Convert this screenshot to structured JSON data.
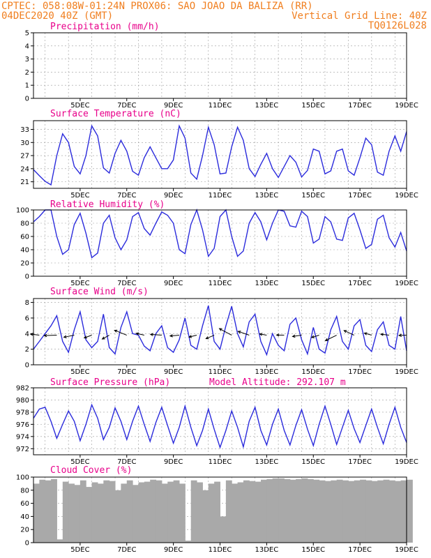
{
  "header": {
    "line1": "CPTEC:   058:08W-01:24N   PROX06: SAO JOAO DA BALIZA (RR)",
    "line2_left": "04DEC2020 40Z (GMT)",
    "line2_right": "Vertical Grid Line: 40Z",
    "line3_right": "TQ0126L028"
  },
  "colors": {
    "header": "#f07e1e",
    "title": "#e8008a",
    "series": "#2b2bdc",
    "bars": "#1f1fd8",
    "cloud": "#a9a9a9",
    "grid": "#9a9a9a"
  },
  "x_labels": [
    "5DEC",
    "7DEC",
    "9DEC",
    "11DEC",
    "13DEC",
    "15DEC",
    "17DEC",
    "19DEC"
  ],
  "model_altitude": "Model Altitude:  292.107 m",
  "chart_data": [
    {
      "type": "bar",
      "title": "Precipitation (mm/h)",
      "ylim": [
        0,
        5
      ],
      "yticks": [
        0,
        1,
        2,
        3,
        4,
        5
      ],
      "x": [
        3.0,
        3.1,
        3.2,
        3.3,
        3.4,
        3.5,
        3.6,
        3.7,
        3.8,
        3.9,
        4.0,
        4.1,
        4.2,
        4.3,
        4.4,
        4.5,
        4.6,
        4.7,
        4.8,
        4.9,
        5.0,
        5.1,
        5.2,
        5.3,
        5.4,
        5.5,
        5.6,
        5.7,
        5.8,
        5.9,
        6.0,
        6.1,
        6.2,
        6.3,
        6.4,
        6.5,
        6.6,
        6.7,
        6.8,
        6.9,
        7.0,
        7.1,
        7.2,
        7.3,
        7.4,
        7.5,
        7.6,
        7.7,
        7.8,
        7.9,
        8.0,
        8.1,
        8.2,
        8.3,
        8.4,
        8.5,
        8.6,
        8.7,
        8.8,
        8.9,
        9.0,
        9.1,
        9.2,
        9.3,
        9.4,
        9.5,
        9.6,
        9.7,
        9.8,
        9.9,
        10.0,
        10.1,
        10.2,
        10.3,
        10.4,
        10.5,
        10.6,
        10.7,
        10.8,
        10.9,
        11.0,
        11.1,
        11.2,
        11.3,
        11.4,
        11.5,
        11.6,
        11.7,
        11.8,
        11.9,
        12.0,
        12.1,
        12.2,
        12.3,
        12.4,
        12.5,
        12.6,
        12.7,
        12.8,
        12.9,
        13.0,
        13.1,
        13.2,
        13.3,
        13.4,
        13.5,
        13.6,
        13.7,
        13.8,
        13.9,
        14.0,
        14.1,
        14.2,
        14.3,
        14.4,
        14.5,
        14.6,
        14.7,
        14.8,
        14.9,
        15.0,
        15.1,
        15.2,
        15.3,
        15.4,
        15.5,
        15.6,
        15.7,
        15.8,
        15.9,
        16.0,
        16.1,
        16.2,
        16.3,
        16.4,
        16.5,
        16.6,
        16.7,
        16.8,
        16.9,
        17.0,
        17.1,
        17.2,
        17.3,
        17.4,
        17.5,
        17.6,
        17.7,
        17.8,
        17.9,
        18.0,
        18.1,
        18.2,
        18.3,
        18.4,
        18.5,
        18.6,
        18.7,
        18.8,
        18.9
      ],
      "values": [
        0,
        0,
        0,
        0,
        0,
        0,
        0,
        0,
        0,
        0,
        0,
        0,
        0,
        0,
        0,
        0,
        0,
        0,
        0,
        0,
        0,
        0,
        0,
        0,
        0,
        0,
        0,
        0,
        0,
        0,
        0,
        0,
        0,
        0,
        0,
        0,
        0,
        0,
        0,
        0,
        0,
        0,
        0,
        0,
        0,
        0,
        0,
        0,
        0,
        0,
        0,
        0,
        0,
        0,
        0,
        0,
        0,
        0,
        0,
        0,
        0,
        0,
        0,
        0,
        0,
        0,
        0,
        0,
        0,
        0,
        0,
        0,
        0,
        0,
        0,
        0,
        0,
        0,
        0,
        0,
        0,
        0,
        0,
        0,
        0,
        0,
        0,
        0,
        0,
        0,
        0,
        0,
        0,
        0,
        0,
        0,
        0,
        0,
        0,
        0,
        0,
        0,
        0,
        0,
        0,
        0,
        0,
        0,
        0,
        0,
        0,
        0,
        0,
        0,
        0,
        0,
        0,
        0,
        0,
        0,
        0,
        0,
        0,
        0,
        0,
        0,
        0,
        0,
        0,
        0,
        0,
        0,
        0,
        0,
        0,
        0,
        0,
        0,
        0,
        0,
        0,
        0,
        0,
        0,
        0,
        0,
        0,
        0,
        0,
        0,
        0,
        0,
        0,
        0,
        0,
        0,
        0,
        0,
        0,
        0
      ]
    },
    {
      "type": "line",
      "title": "Surface Temperature (nC)",
      "ylim": [
        19.5,
        35
      ],
      "yticks": [
        21,
        24,
        27,
        30,
        33
      ],
      "x": [
        3.0,
        3.25,
        3.5,
        3.75,
        4.0,
        4.25,
        4.5,
        4.75,
        5.0,
        5.25,
        5.5,
        5.75,
        6.0,
        6.25,
        6.5,
        6.75,
        7.0,
        7.25,
        7.5,
        7.75,
        8.0,
        8.25,
        8.5,
        8.75,
        9.0,
        9.25,
        9.5,
        9.75,
        10.0,
        10.25,
        10.5,
        10.75,
        11.0,
        11.25,
        11.5,
        11.75,
        12.0,
        12.25,
        12.5,
        12.75,
        13.0,
        13.25,
        13.5,
        13.75,
        14.0,
        14.25,
        14.5,
        14.75,
        15.0,
        15.25,
        15.5,
        15.75,
        16.0,
        16.25,
        16.5,
        16.75,
        17.0,
        17.25,
        17.5,
        17.75,
        18.0,
        18.25,
        18.5,
        18.75,
        19.0
      ],
      "values": [
        23.8,
        22.4,
        21.1,
        20.3,
        27.0,
        32.0,
        30.0,
        24.5,
        22.8,
        27.0,
        33.8,
        31.5,
        24.2,
        23.0,
        27.5,
        30.5,
        28.0,
        23.4,
        22.5,
        26.5,
        29.0,
        26.5,
        24.0,
        24.0,
        26.0,
        33.8,
        31.0,
        23.0,
        21.6,
        27.0,
        33.5,
        29.5,
        22.8,
        23.0,
        29.0,
        33.5,
        30.5,
        24.0,
        22.2,
        25.0,
        27.5,
        24.0,
        22.0,
        24.5,
        27.0,
        25.5,
        22.1,
        23.6,
        28.5,
        28.0,
        22.8,
        23.5,
        28.0,
        28.5,
        23.5,
        22.5,
        26.5,
        31.0,
        29.5,
        23.2,
        22.5,
        28.0,
        31.5,
        28.0,
        32.5
      ]
    },
    {
      "type": "line",
      "title": "Relative Humidity (%)",
      "ylim": [
        0,
        100
      ],
      "yticks": [
        0,
        20,
        40,
        60,
        80,
        100
      ],
      "x": [
        3.0,
        3.25,
        3.5,
        3.75,
        4.0,
        4.25,
        4.5,
        4.75,
        5.0,
        5.25,
        5.5,
        5.75,
        6.0,
        6.25,
        6.5,
        6.75,
        7.0,
        7.25,
        7.5,
        7.75,
        8.0,
        8.25,
        8.5,
        8.75,
        9.0,
        9.25,
        9.5,
        9.75,
        10.0,
        10.25,
        10.5,
        10.75,
        11.0,
        11.25,
        11.5,
        11.75,
        12.0,
        12.25,
        12.5,
        12.75,
        13.0,
        13.25,
        13.5,
        13.75,
        14.0,
        14.25,
        14.5,
        14.75,
        15.0,
        15.25,
        15.5,
        15.75,
        16.0,
        16.25,
        16.5,
        16.75,
        17.0,
        17.25,
        17.5,
        17.75,
        18.0,
        18.25,
        18.5,
        18.75,
        19.0
      ],
      "values": [
        82,
        90,
        100,
        100,
        60,
        33,
        40,
        78,
        95,
        65,
        28,
        35,
        80,
        92,
        58,
        40,
        55,
        90,
        96,
        72,
        62,
        80,
        97,
        92,
        80,
        40,
        34,
        78,
        100,
        70,
        30,
        42,
        90,
        100,
        60,
        30,
        38,
        80,
        96,
        82,
        55,
        80,
        100,
        98,
        76,
        74,
        98,
        90,
        50,
        56,
        90,
        82,
        56,
        54,
        88,
        95,
        70,
        42,
        48,
        86,
        92,
        58,
        44,
        66,
        38
      ]
    },
    {
      "type": "line",
      "title": "Surface Wind (m/s)",
      "ylim": [
        0,
        8.5
      ],
      "yticks": [
        0,
        2,
        4,
        6,
        8
      ],
      "x": [
        3.0,
        3.25,
        3.5,
        3.75,
        4.0,
        4.25,
        4.5,
        4.75,
        5.0,
        5.25,
        5.5,
        5.75,
        6.0,
        6.25,
        6.5,
        6.75,
        7.0,
        7.25,
        7.5,
        7.75,
        8.0,
        8.25,
        8.5,
        8.75,
        9.0,
        9.25,
        9.5,
        9.75,
        10.0,
        10.25,
        10.5,
        10.75,
        11.0,
        11.25,
        11.5,
        11.75,
        12.0,
        12.25,
        12.5,
        12.75,
        13.0,
        13.25,
        13.5,
        13.75,
        14.0,
        14.25,
        14.5,
        14.75,
        15.0,
        15.25,
        15.5,
        15.75,
        16.0,
        16.25,
        16.5,
        16.75,
        17.0,
        17.25,
        17.5,
        17.75,
        18.0,
        18.25,
        18.5,
        18.75,
        19.0
      ],
      "values": [
        2.0,
        3.0,
        4.0,
        5.0,
        6.3,
        3.0,
        1.6,
        4.5,
        6.8,
        3.2,
        2.2,
        3.0,
        6.5,
        2.2,
        1.4,
        4.8,
        6.8,
        4.0,
        3.8,
        2.4,
        1.8,
        4.0,
        5.0,
        2.2,
        1.6,
        3.2,
        6.0,
        2.5,
        2.0,
        5.0,
        7.6,
        3.0,
        2.0,
        5.0,
        7.5,
        4.0,
        2.3,
        5.5,
        6.5,
        3.0,
        1.3,
        4.0,
        2.5,
        1.8,
        5.2,
        6.0,
        3.2,
        1.4,
        4.8,
        2.0,
        1.5,
        4.5,
        6.2,
        3.0,
        2.0,
        5.0,
        5.8,
        2.5,
        1.7,
        4.5,
        5.5,
        2.5,
        2.0,
        6.2,
        1.8
      ]
    },
    {
      "type": "line",
      "title": "Surface Pressure (hPa)",
      "ylim": [
        971,
        982
      ],
      "yticks": [
        972,
        974,
        976,
        978,
        980,
        982
      ],
      "x": [
        3.0,
        3.25,
        3.5,
        3.75,
        4.0,
        4.25,
        4.5,
        4.75,
        5.0,
        5.25,
        5.5,
        5.75,
        6.0,
        6.25,
        6.5,
        6.75,
        7.0,
        7.25,
        7.5,
        7.75,
        8.0,
        8.25,
        8.5,
        8.75,
        9.0,
        9.25,
        9.5,
        9.75,
        10.0,
        10.25,
        10.5,
        10.75,
        11.0,
        11.25,
        11.5,
        11.75,
        12.0,
        12.25,
        12.5,
        12.75,
        13.0,
        13.25,
        13.5,
        13.75,
        14.0,
        14.25,
        14.5,
        14.75,
        15.0,
        15.25,
        15.5,
        15.75,
        16.0,
        16.25,
        16.5,
        16.75,
        17.0,
        17.25,
        17.5,
        17.75,
        18.0,
        18.25,
        18.5,
        18.75,
        19.0
      ],
      "values": [
        977.0,
        978.5,
        978.8,
        976.5,
        973.7,
        976.0,
        978.2,
        976.5,
        973.3,
        976.0,
        979.2,
        977.0,
        973.5,
        975.5,
        978.7,
        976.5,
        973.5,
        976.5,
        979.0,
        976.0,
        973.2,
        976.3,
        978.8,
        975.8,
        972.9,
        975.5,
        979.0,
        975.5,
        972.5,
        975.0,
        978.5,
        975.2,
        972.2,
        975.0,
        978.2,
        975.5,
        972.3,
        976.5,
        978.8,
        975.0,
        972.6,
        976.0,
        978.5,
        975.0,
        972.6,
        975.8,
        978.4,
        975.2,
        972.5,
        976.0,
        979.0,
        976.0,
        972.7,
        975.5,
        978.3,
        975.3,
        973.0,
        975.8,
        978.5,
        975.5,
        972.8,
        976.0,
        978.8,
        975.5,
        973.0
      ]
    },
    {
      "type": "area",
      "title": "Cloud Cover (%)",
      "ylim": [
        0,
        100
      ],
      "yticks": [
        0,
        20,
        40,
        60,
        80,
        100
      ],
      "x": [
        3.0,
        3.25,
        3.5,
        3.75,
        4.0,
        4.25,
        4.5,
        4.75,
        5.0,
        5.25,
        5.5,
        5.75,
        6.0,
        6.25,
        6.5,
        6.75,
        7.0,
        7.25,
        7.5,
        7.75,
        8.0,
        8.25,
        8.5,
        8.75,
        9.0,
        9.25,
        9.5,
        9.75,
        10.0,
        10.25,
        10.5,
        10.75,
        11.0,
        11.25,
        11.5,
        11.75,
        12.0,
        12.25,
        12.5,
        12.75,
        13.0,
        13.25,
        13.5,
        13.75,
        14.0,
        14.25,
        14.5,
        14.75,
        15.0,
        15.25,
        15.5,
        15.75,
        16.0,
        16.25,
        16.5,
        16.75,
        17.0,
        17.25,
        17.5,
        17.75,
        18.0,
        18.25,
        18.5,
        18.75,
        19.0
      ],
      "values": [
        90,
        96,
        95,
        97,
        5,
        93,
        90,
        88,
        95,
        85,
        92,
        90,
        95,
        94,
        80,
        90,
        95,
        88,
        92,
        93,
        96,
        95,
        90,
        93,
        95,
        90,
        3,
        95,
        92,
        80,
        90,
        93,
        40,
        95,
        90,
        92,
        95,
        94,
        93,
        96,
        97,
        98,
        98,
        97,
        96,
        97,
        98,
        97,
        96,
        95,
        94,
        95,
        96,
        95,
        94,
        95,
        96,
        95,
        94,
        95,
        96,
        95,
        94,
        95,
        96
      ]
    }
  ]
}
